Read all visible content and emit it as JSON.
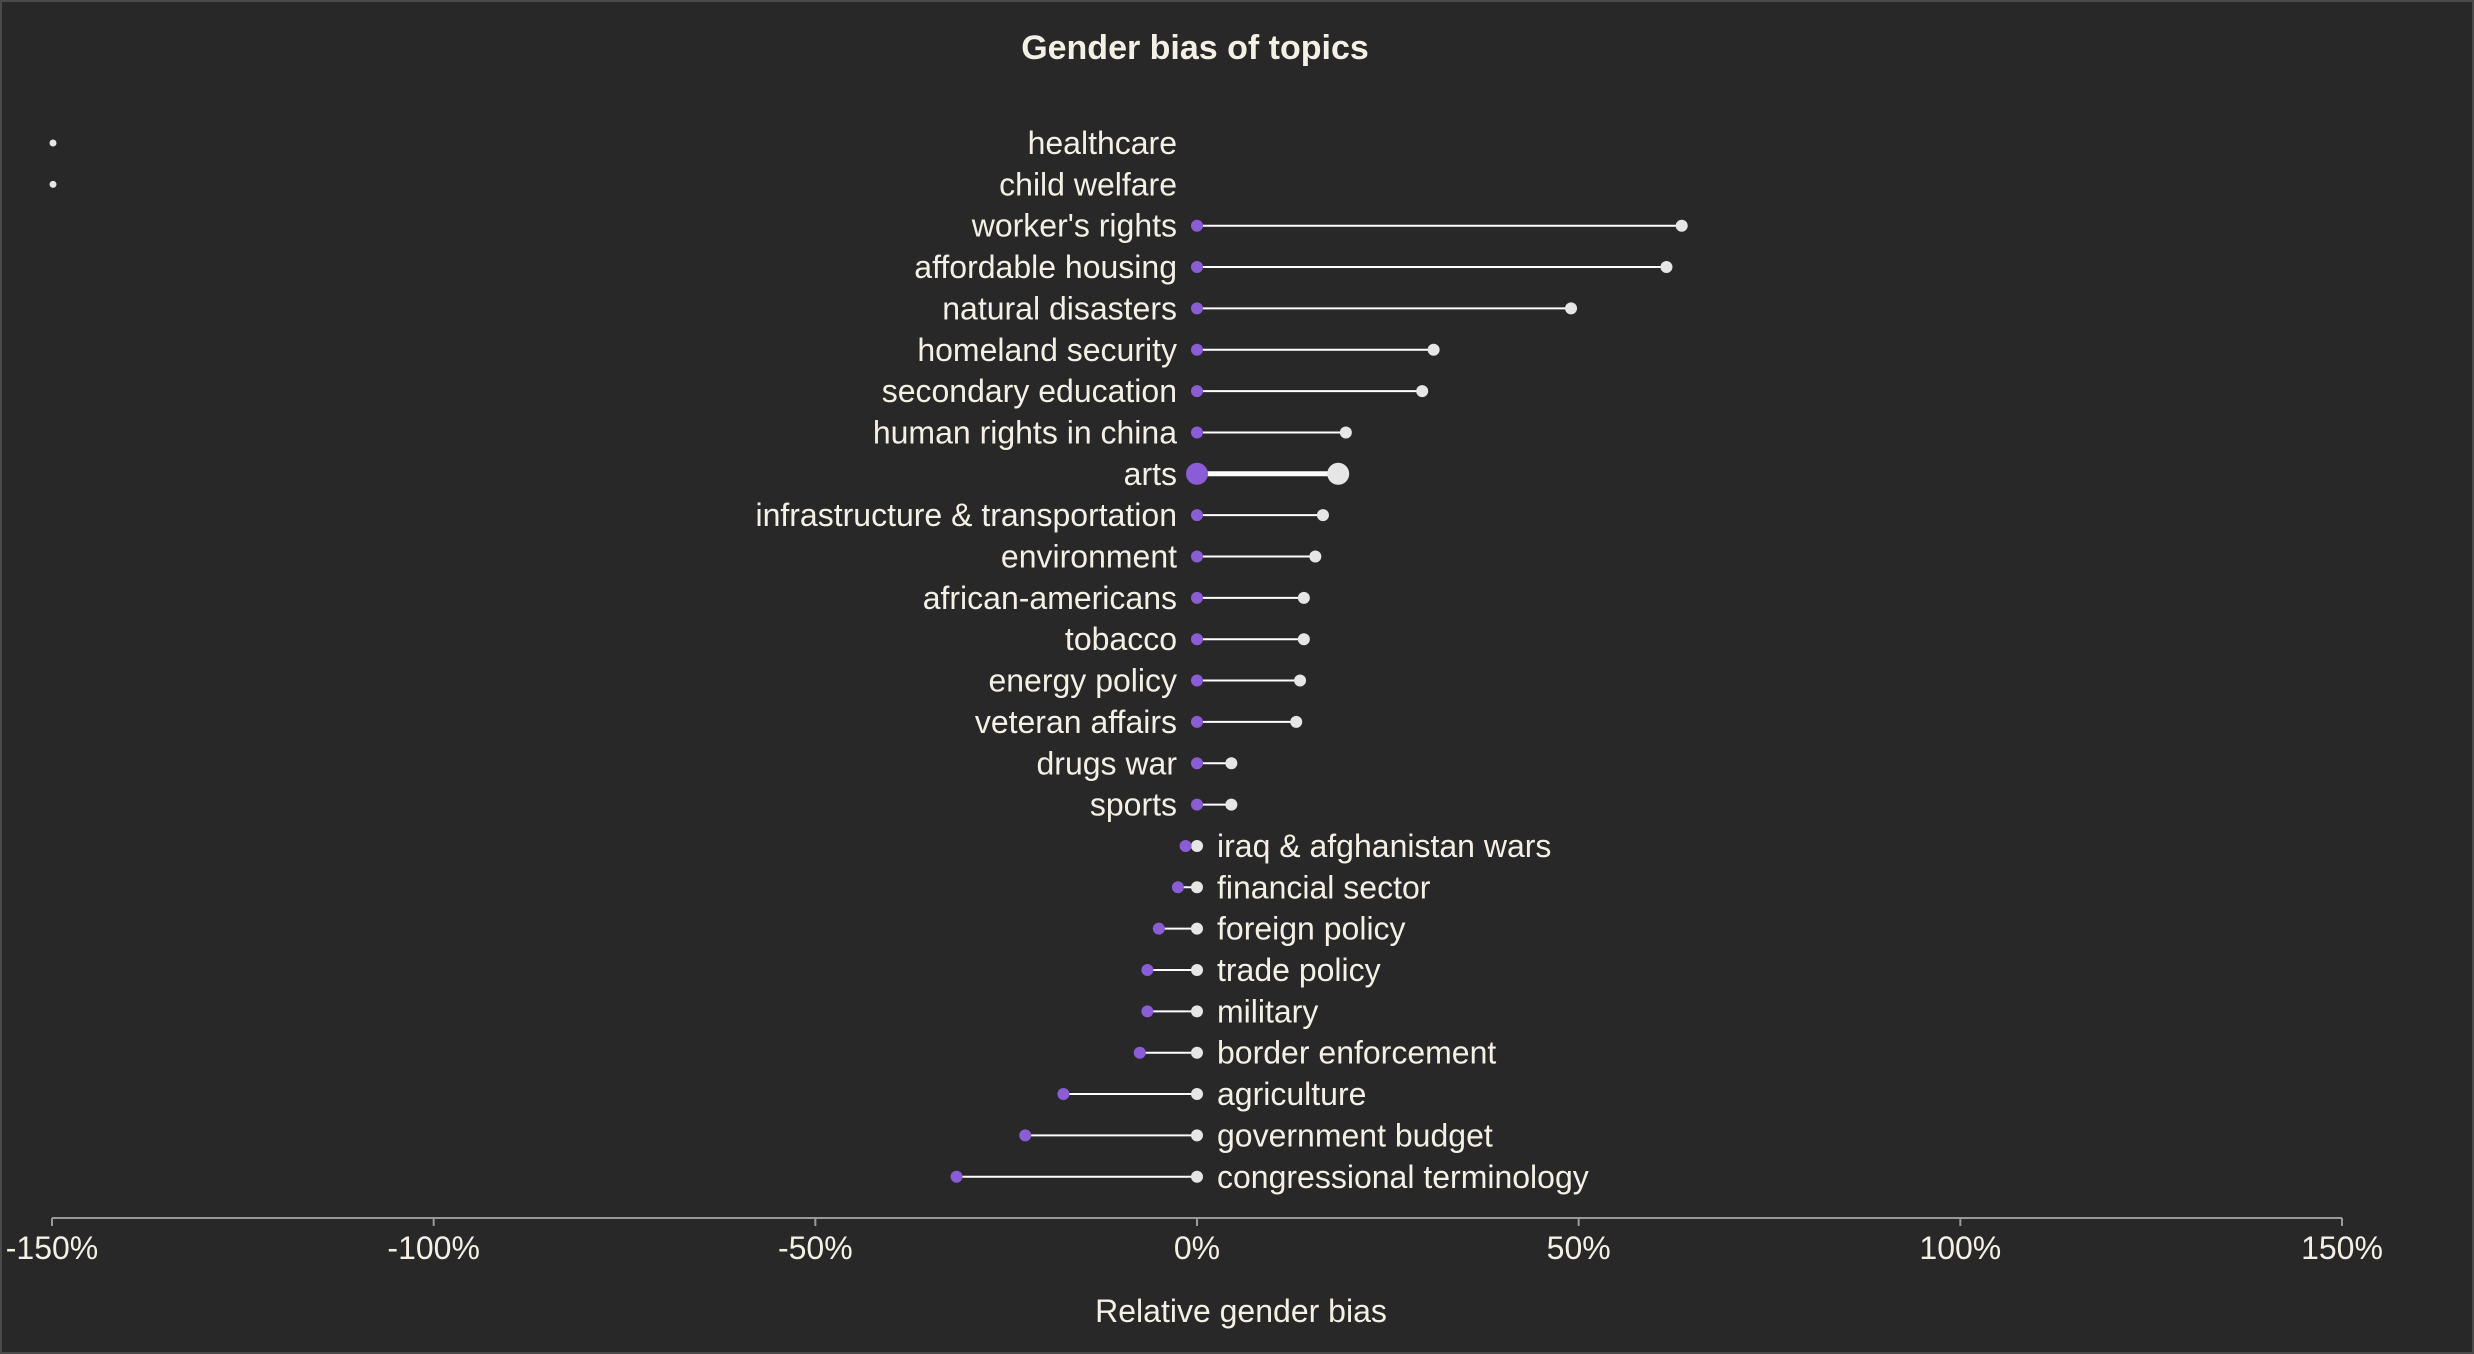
{
  "chart_data": {
    "type": "dumbbell",
    "title": "Gender bias of topics",
    "xlabel": "Relative gender bias",
    "ylabel": "",
    "xlim": [
      -150,
      150
    ],
    "xticks": [
      -150,
      -100,
      -50,
      0,
      50,
      100,
      150
    ],
    "tick_suffix": "%",
    "highlight": "arts",
    "colors": {
      "female": "#8a5cd6",
      "male": "#e6e6e6",
      "stem": "#ffffff",
      "text": "#f5f0e6",
      "axis": "#9a9a9a",
      "background": "#282828"
    },
    "rows": [
      {
        "label": "healthcare",
        "start": null,
        "end": null
      },
      {
        "label": "child welfare",
        "start": null,
        "end": null
      },
      {
        "label": "worker's rights",
        "start": 0,
        "end": 63.5
      },
      {
        "label": "affordable housing",
        "start": 0,
        "end": 61.5
      },
      {
        "label": "natural disasters",
        "start": 0,
        "end": 49
      },
      {
        "label": "homeland security",
        "start": 0,
        "end": 31
      },
      {
        "label": "secondary education",
        "start": 0,
        "end": 29.5
      },
      {
        "label": "human rights in china",
        "start": 0,
        "end": 19.5
      },
      {
        "label": "arts",
        "start": 0,
        "end": 18.5
      },
      {
        "label": "infrastructure & transportation",
        "start": 0,
        "end": 16.5
      },
      {
        "label": "environment",
        "start": 0,
        "end": 15.5
      },
      {
        "label": "african-americans",
        "start": 0,
        "end": 14
      },
      {
        "label": "tobacco",
        "start": 0,
        "end": 14
      },
      {
        "label": "energy policy",
        "start": 0,
        "end": 13.5
      },
      {
        "label": "veteran affairs",
        "start": 0,
        "end": 13
      },
      {
        "label": "drugs war",
        "start": 0,
        "end": 4.5
      },
      {
        "label": "sports",
        "start": 0,
        "end": 4.5
      },
      {
        "label": "iraq & afghanistan wars",
        "start": -1.5,
        "end": 0
      },
      {
        "label": "financial sector",
        "start": -2.5,
        "end": 0
      },
      {
        "label": "foreign policy",
        "start": -5,
        "end": 0
      },
      {
        "label": "trade policy",
        "start": -6.5,
        "end": 0
      },
      {
        "label": "military",
        "start": -6.5,
        "end": 0
      },
      {
        "label": "border enforcement",
        "start": -7.5,
        "end": 0
      },
      {
        "label": "agriculture",
        "start": -17.5,
        "end": 0
      },
      {
        "label": "government budget",
        "start": -22.5,
        "end": 0
      },
      {
        "label": "congressional terminology",
        "start": -31.5,
        "end": 0
      }
    ]
  }
}
